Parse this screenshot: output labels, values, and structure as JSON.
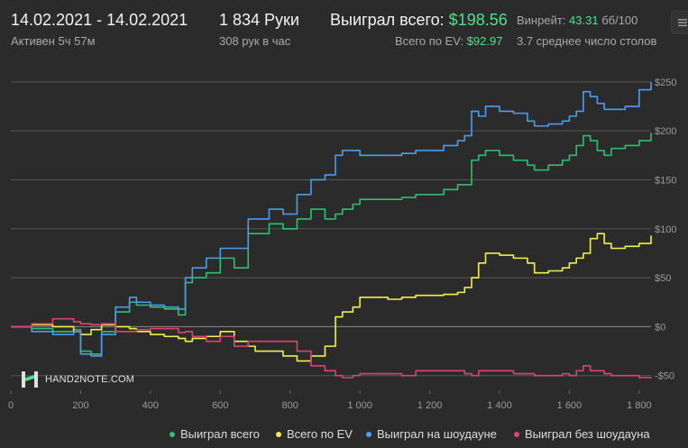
{
  "header": {
    "date_range": "14.02.2021 - 14.02.2021",
    "active": "Активен 5ч 57м",
    "hands": "1 834 Руки",
    "hands_per_hour": "308 рук в час",
    "won_total_label": "Выиграл всего:",
    "won_total_value": "$198.56",
    "ev_total_label": "Всего по EV:",
    "ev_total_value": "$92.97",
    "winrate_label": "Винрейт:",
    "winrate_value": "43.31",
    "winrate_unit": "бб/100",
    "avg_tables": "3.7 среднее число столов"
  },
  "menu_icon": "settings-menu-icon",
  "logo": {
    "text": "HAND2NOTE.COM"
  },
  "colors": {
    "background": "#2b2b2b",
    "won_total": "#2fbf71",
    "ev_total": "#f2f04a",
    "showdown": "#4a9df0",
    "non_showdown": "#e0426f",
    "grid": "#555555",
    "zero_line": "#8a8a8a"
  },
  "chart_data": {
    "type": "line",
    "xlim": [
      0,
      1834
    ],
    "ylim": [
      -65,
      260
    ],
    "x_ticks": [
      0,
      200,
      400,
      600,
      800,
      1000,
      1200,
      1400,
      1600,
      1800
    ],
    "x_tick_labels": [
      "0",
      "200",
      "400",
      "600",
      "800",
      "1 000",
      "1 200",
      "1 400",
      "1 600",
      "1 800"
    ],
    "y_ticks": [
      250,
      200,
      150,
      100,
      50,
      0,
      -50
    ],
    "y_tick_labels": [
      "$250",
      "$200",
      "$150",
      "$100",
      "$50",
      "$0",
      "-$50"
    ],
    "grid": true,
    "legend_position": "bottom",
    "series": [
      {
        "name": "Выиграл всего",
        "color": "#2fbf71",
        "x": [
          0,
          60,
          120,
          180,
          200,
          230,
          260,
          300,
          340,
          360,
          400,
          440,
          480,
          500,
          520,
          560,
          600,
          640,
          680,
          700,
          740,
          780,
          820,
          860,
          900,
          930,
          950,
          980,
          1000,
          1040,
          1080,
          1120,
          1160,
          1200,
          1240,
          1280,
          1300,
          1320,
          1340,
          1360,
          1400,
          1440,
          1480,
          1500,
          1540,
          1580,
          1600,
          1620,
          1640,
          1660,
          1680,
          1700,
          1720,
          1760,
          1800,
          1834
        ],
        "y": [
          0,
          -2,
          -5,
          -3,
          -25,
          -28,
          -5,
          15,
          25,
          22,
          20,
          18,
          12,
          45,
          50,
          55,
          70,
          60,
          95,
          95,
          105,
          100,
          110,
          120,
          110,
          115,
          120,
          125,
          130,
          130,
          130,
          132,
          135,
          135,
          140,
          145,
          145,
          170,
          175,
          180,
          175,
          170,
          165,
          160,
          165,
          170,
          175,
          185,
          195,
          190,
          180,
          175,
          182,
          185,
          190,
          198
        ]
      },
      {
        "name": "Всего по EV",
        "color": "#f2f04a",
        "x": [
          0,
          60,
          120,
          180,
          200,
          230,
          260,
          300,
          340,
          360,
          400,
          440,
          480,
          500,
          520,
          560,
          600,
          640,
          680,
          700,
          740,
          780,
          820,
          860,
          900,
          930,
          950,
          980,
          1000,
          1040,
          1080,
          1120,
          1160,
          1200,
          1240,
          1280,
          1300,
          1320,
          1340,
          1360,
          1400,
          1440,
          1480,
          1500,
          1540,
          1580,
          1600,
          1620,
          1640,
          1660,
          1680,
          1700,
          1720,
          1760,
          1800,
          1834
        ],
        "y": [
          0,
          2,
          0,
          -5,
          -8,
          -3,
          2,
          0,
          -2,
          -5,
          -8,
          -10,
          -12,
          -15,
          -12,
          -10,
          -5,
          -15,
          -20,
          -25,
          -25,
          -30,
          -35,
          -30,
          -20,
          10,
          15,
          20,
          30,
          30,
          28,
          30,
          32,
          32,
          33,
          35,
          40,
          50,
          65,
          75,
          73,
          70,
          65,
          55,
          57,
          60,
          65,
          70,
          75,
          90,
          95,
          85,
          80,
          82,
          85,
          93
        ]
      },
      {
        "name": "Выиграл на шоудауне",
        "color": "#4a9df0",
        "x": [
          0,
          60,
          120,
          180,
          200,
          230,
          260,
          300,
          340,
          360,
          400,
          440,
          480,
          500,
          520,
          560,
          600,
          640,
          680,
          700,
          740,
          780,
          820,
          860,
          900,
          930,
          950,
          980,
          1000,
          1040,
          1080,
          1120,
          1160,
          1200,
          1240,
          1280,
          1300,
          1320,
          1340,
          1360,
          1400,
          1440,
          1480,
          1500,
          1540,
          1580,
          1600,
          1620,
          1640,
          1660,
          1680,
          1700,
          1720,
          1760,
          1800,
          1834
        ],
        "y": [
          0,
          -5,
          -8,
          -5,
          -28,
          -30,
          -8,
          20,
          30,
          25,
          22,
          20,
          18,
          50,
          60,
          70,
          80,
          80,
          110,
          110,
          120,
          115,
          135,
          150,
          155,
          175,
          180,
          180,
          175,
          175,
          175,
          177,
          180,
          180,
          185,
          190,
          195,
          220,
          215,
          225,
          220,
          218,
          210,
          205,
          207,
          210,
          215,
          220,
          240,
          235,
          228,
          222,
          222,
          225,
          242,
          250
        ]
      },
      {
        "name": "Выиграл без шоудауна",
        "color": "#e0426f",
        "x": [
          0,
          60,
          120,
          180,
          200,
          230,
          260,
          300,
          340,
          360,
          400,
          440,
          480,
          500,
          520,
          560,
          600,
          640,
          680,
          700,
          740,
          780,
          820,
          860,
          900,
          930,
          950,
          980,
          1000,
          1040,
          1080,
          1120,
          1160,
          1200,
          1240,
          1280,
          1300,
          1320,
          1340,
          1360,
          1400,
          1440,
          1480,
          1500,
          1540,
          1580,
          1600,
          1620,
          1640,
          1660,
          1680,
          1700,
          1720,
          1760,
          1800,
          1834
        ],
        "y": [
          0,
          3,
          8,
          5,
          3,
          2,
          3,
          -5,
          -5,
          -3,
          -2,
          -2,
          -6,
          -5,
          -10,
          -15,
          -10,
          -20,
          -15,
          -15,
          -15,
          -15,
          -25,
          -40,
          -45,
          -50,
          -52,
          -50,
          -48,
          -48,
          -48,
          -50,
          -45,
          -45,
          -45,
          -45,
          -48,
          -50,
          -45,
          -45,
          -45,
          -48,
          -48,
          -50,
          -50,
          -48,
          -50,
          -45,
          -40,
          -45,
          -45,
          -48,
          -50,
          -50,
          -52,
          -53
        ]
      }
    ]
  }
}
